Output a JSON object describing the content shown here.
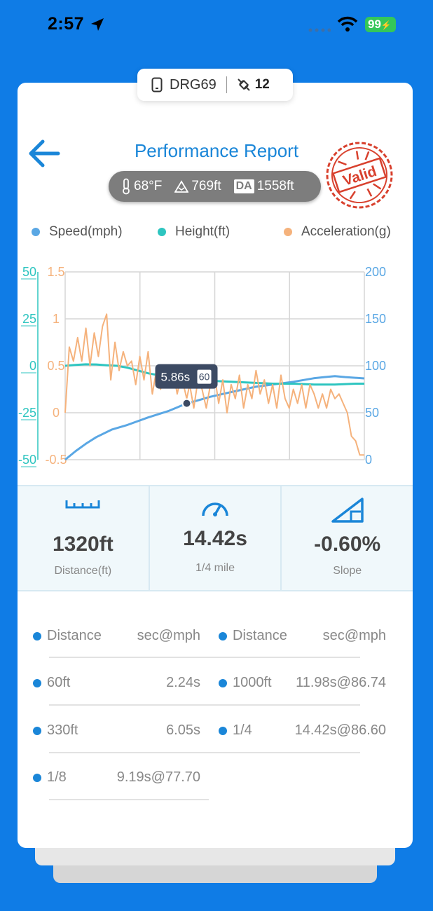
{
  "status_bar": {
    "time": "2:57",
    "battery": "99"
  },
  "device": {
    "name": "DRG69",
    "satellites": "12"
  },
  "header": {
    "title": "Performance Report",
    "stamp_text": "Valid"
  },
  "conditions": {
    "temperature": "68°F",
    "altitude": "769ft",
    "da_label": "DA",
    "density_altitude": "1558ft"
  },
  "legend": [
    {
      "label": "Speed(mph)",
      "color": "#5aa7e4"
    },
    {
      "label": "Height(ft)",
      "color": "#2ec5c0"
    },
    {
      "label": "Acceleration(g)",
      "color": "#f5b27c"
    }
  ],
  "chart_data": {
    "type": "line",
    "x_label": "",
    "x_range": [
      0,
      14.42
    ],
    "left_axis_height": {
      "ticks": [
        "50",
        "25",
        "0",
        "-25",
        "-50"
      ],
      "range": [
        -50,
        50
      ],
      "color": "#2ec5c0"
    },
    "left_axis_accel": {
      "ticks": [
        "1.5",
        "1",
        "0.5",
        "0",
        "-0.5"
      ],
      "range": [
        -0.5,
        1.5
      ],
      "color": "#f5b27c"
    },
    "right_axis_speed": {
      "ticks": [
        "200",
        "150",
        "100",
        "50",
        "0"
      ],
      "range": [
        0,
        200
      ],
      "color": "#5aa7e4"
    },
    "series": [
      {
        "name": "Speed(mph)",
        "axis": "right",
        "color": "#5aa7e4",
        "x": [
          0,
          0.5,
          1,
          1.5,
          2.24,
          3,
          4,
          5,
          5.86,
          6.05,
          7,
          8,
          9.19,
          10,
          11,
          11.98,
          12.5,
          13,
          13.5,
          14.42
        ],
        "y": [
          0,
          9,
          17,
          24,
          32,
          37,
          45,
          52,
          60,
          61,
          67,
          72,
          77.7,
          80,
          83,
          86.74,
          88,
          89,
          88,
          86.6
        ]
      },
      {
        "name": "Height(ft)",
        "axis": "left",
        "color": "#2ec5c0",
        "x": [
          0,
          0.5,
          1,
          1.5,
          2,
          2.5,
          3,
          4,
          5,
          6,
          7,
          8,
          9,
          10,
          11,
          12,
          13,
          14,
          14.42
        ],
        "y": [
          0,
          0.5,
          0.8,
          0.7,
          0.3,
          0,
          -1,
          -4,
          -6,
          -7,
          -8,
          -8.5,
          -9,
          -9.5,
          -9.5,
          -10,
          -10,
          -9.5,
          -9.5
        ]
      },
      {
        "name": "Acceleration(g)",
        "axis": "left_accel",
        "color": "#f5b27c",
        "x": [
          0,
          0.2,
          0.4,
          0.6,
          0.8,
          1,
          1.2,
          1.4,
          1.6,
          1.8,
          2,
          2.2,
          2.4,
          2.6,
          2.8,
          3,
          3.2,
          3.4,
          3.6,
          3.8,
          4,
          4.2,
          4.4,
          4.6,
          4.8,
          5,
          5.2,
          5.4,
          5.6,
          5.86,
          6,
          6.2,
          6.4,
          6.6,
          6.8,
          7,
          7.2,
          7.4,
          7.6,
          7.8,
          8,
          8.2,
          8.4,
          8.6,
          8.8,
          9,
          9.2,
          9.4,
          9.6,
          9.8,
          10,
          10.2,
          10.4,
          10.6,
          10.8,
          11,
          11.2,
          11.4,
          11.6,
          11.8,
          12,
          12.2,
          12.4,
          12.6,
          12.8,
          13,
          13.2,
          13.4,
          13.6,
          13.8,
          14,
          14.2,
          14.42
        ],
        "y": [
          0,
          0.7,
          0.55,
          0.8,
          0.55,
          0.9,
          0.5,
          0.85,
          0.6,
          0.92,
          1.05,
          0.35,
          0.75,
          0.45,
          0.65,
          0.5,
          0.55,
          0.3,
          0.6,
          0.35,
          0.65,
          0.2,
          0.45,
          0.25,
          0.5,
          0.3,
          0.45,
          0.2,
          0.4,
          0.15,
          0.3,
          0.05,
          0.35,
          0.25,
          0.05,
          0.3,
          0.4,
          0.1,
          0.35,
          0.0,
          0.3,
          0.15,
          0.4,
          0.05,
          0.3,
          0.15,
          0.45,
          0.2,
          0.35,
          0.1,
          0.3,
          0.05,
          0.4,
          0.15,
          0.05,
          0.25,
          0.1,
          0.3,
          0.05,
          0.3,
          0.2,
          0.05,
          0.2,
          0.05,
          0.25,
          0.15,
          0.2,
          0.1,
          0.0,
          -0.25,
          -0.3,
          -0.45,
          -0.45
        ]
      }
    ],
    "tooltip": {
      "label": "5.86s",
      "value": "60"
    }
  },
  "stats": [
    {
      "value": "1320ft",
      "label": "Distance(ft)",
      "icon": "ruler-icon"
    },
    {
      "value": "14.42s",
      "label": "1/4 mile",
      "icon": "speedometer-icon"
    },
    {
      "value": "-0.60%",
      "label": "Slope",
      "icon": "slope-icon"
    }
  ],
  "splits": {
    "headers": {
      "distance": "Distance",
      "time": "sec@mph"
    },
    "left": [
      {
        "distance": "60ft",
        "time": "2.24s"
      },
      {
        "distance": "330ft",
        "time": "6.05s"
      },
      {
        "distance": "1/8",
        "time": "9.19s@77.70"
      }
    ],
    "right": [
      {
        "distance": "1000ft",
        "time": "11.98s@86.74"
      },
      {
        "distance": "1/4",
        "time": "14.42s@86.60"
      }
    ]
  }
}
